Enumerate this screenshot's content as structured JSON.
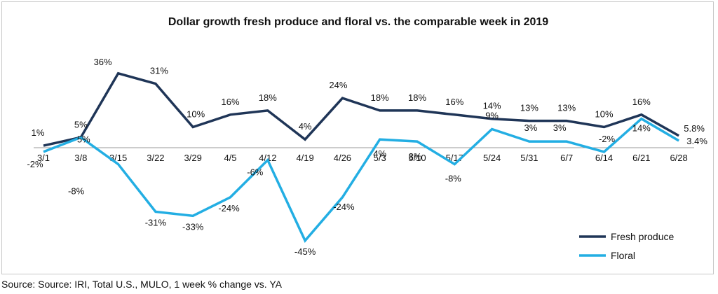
{
  "chart_data": {
    "type": "line",
    "title": "Dollar growth fresh produce and floral vs. the comparable week in 2019",
    "xlabel": "",
    "ylabel": "",
    "ylim": [
      -50,
      40
    ],
    "grid": false,
    "legend_position": "bottom-right",
    "categories": [
      "3/1",
      "3/8",
      "3/15",
      "3/22",
      "3/29",
      "4/5",
      "4/12",
      "4/19",
      "4/26",
      "5/3",
      "5/10",
      "5/17",
      "5/24",
      "5/31",
      "6/7",
      "6/14",
      "6/21",
      "6/28"
    ],
    "series": [
      {
        "name": "Fresh produce",
        "color": "#1f3557",
        "values": [
          1,
          5,
          36,
          31,
          10,
          16,
          18,
          4,
          24,
          18,
          18,
          16,
          14,
          13,
          13,
          10,
          16,
          5.8
        ],
        "labels": [
          "1%",
          "5%",
          "36%",
          "31%",
          "10%",
          "16%",
          "18%",
          "4%",
          "24%",
          "18%",
          "18%",
          "16%",
          "14%",
          "13%",
          "13%",
          "10%",
          "16%",
          "5.8%"
        ]
      },
      {
        "name": "Floral",
        "color": "#23aee3",
        "values": [
          -2,
          5,
          -8,
          -31,
          -33,
          -24,
          -6,
          -45,
          -24,
          4,
          3,
          -8,
          9,
          3,
          3,
          -2,
          14,
          3.4
        ],
        "labels": [
          "-2%",
          "5%",
          "-8%",
          "-31%",
          "-33%",
          "-24%",
          "-6%",
          "-45%",
          "-24%",
          "4%",
          "3%",
          "-8%",
          "9%",
          "3%",
          "3%",
          "-2%",
          "14%",
          "3.4%"
        ]
      }
    ]
  },
  "source_text": "Source: Source: IRI, Total U.S., MULO, 1 week % change vs. YA"
}
